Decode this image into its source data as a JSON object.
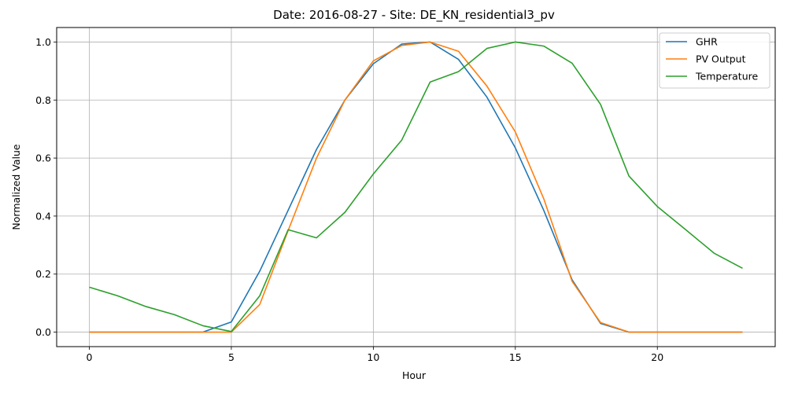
{
  "chart_data": {
    "type": "line",
    "title": "Date: 2016-08-27 - Site: DE_KN_residential3_pv",
    "xlabel": "Hour",
    "ylabel": "Normalized Value",
    "xlim": [
      -1.15,
      24.15
    ],
    "ylim": [
      -0.05,
      1.05
    ],
    "xticks": [
      0,
      5,
      10,
      15,
      20
    ],
    "yticks": [
      0.0,
      0.2,
      0.4,
      0.6,
      0.8,
      1.0
    ],
    "xtick_labels": [
      "0",
      "5",
      "10",
      "15",
      "20"
    ],
    "ytick_labels": [
      "0.0",
      "0.2",
      "0.4",
      "0.6",
      "0.8",
      "1.0"
    ],
    "grid": true,
    "legend_position": "top-right",
    "x": [
      0,
      1,
      2,
      3,
      4,
      5,
      6,
      7,
      8,
      9,
      10,
      11,
      12,
      13,
      14,
      15,
      16,
      17,
      18,
      19,
      20,
      21,
      22,
      23
    ],
    "series": [
      {
        "name": "GHR",
        "color": "#1f77b4",
        "values": [
          0,
          0,
          0,
          0,
          0,
          0.035,
          0.21,
          0.42,
          0.63,
          0.8,
          0.925,
          0.993,
          1.0,
          0.94,
          0.81,
          0.635,
          0.42,
          0.18,
          0.03,
          0,
          0,
          0,
          0,
          0
        ]
      },
      {
        "name": "PV Output",
        "color": "#ff7f0e",
        "values": [
          0,
          0,
          0,
          0,
          0,
          0,
          0.095,
          0.35,
          0.6,
          0.8,
          0.935,
          0.988,
          1.0,
          0.968,
          0.848,
          0.69,
          0.46,
          0.175,
          0.033,
          0,
          0,
          0,
          0,
          0
        ]
      },
      {
        "name": "Temperature",
        "color": "#2ca02c",
        "values": [
          0.155,
          0.125,
          0.088,
          0.06,
          0.022,
          0.002,
          0.125,
          0.353,
          0.325,
          0.413,
          0.545,
          0.662,
          0.862,
          0.898,
          0.978,
          1.0,
          0.986,
          0.927,
          0.785,
          0.538,
          0.433,
          0.353,
          0.272,
          0.22
        ]
      }
    ]
  }
}
